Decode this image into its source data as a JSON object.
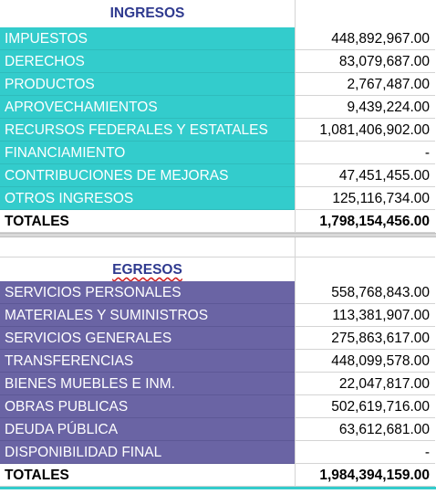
{
  "ingresos": {
    "title": "INGRESOS",
    "rows": [
      {
        "label": "IMPUESTOS",
        "value": "448,892,967.00"
      },
      {
        "label": "DERECHOS",
        "value": "83,079,687.00"
      },
      {
        "label": "PRODUCTOS",
        "value": "2,767,487.00"
      },
      {
        "label": "APROVECHAMIENTOS",
        "value": "9,439,224.00"
      },
      {
        "label": "RECURSOS FEDERALES Y ESTATALES",
        "value": "1,081,406,902.00"
      },
      {
        "label": "FINANCIAMIENTO",
        "value": "-"
      },
      {
        "label": "CONTRIBUCIONES DE MEJORAS",
        "value": "47,451,455.00"
      },
      {
        "label": "OTROS INGRESOS",
        "value": "125,116,734.00"
      }
    ],
    "total_label": "TOTALES",
    "total_value": "1,798,154,456.00"
  },
  "egresos": {
    "title": "EGRESOS",
    "rows": [
      {
        "label": "SERVICIOS PERSONALES",
        "value": "558,768,843.00"
      },
      {
        "label": "MATERIALES Y SUMINISTROS",
        "value": "113,381,907.00"
      },
      {
        "label": "SERVICIOS GENERALES",
        "value": "275,863,617.00"
      },
      {
        "label": "TRANSFERENCIAS",
        "value": "448,099,578.00"
      },
      {
        "label": "BIENES MUEBLES E INM.",
        "value": "22,047,817.00"
      },
      {
        "label": "OBRAS PUBLICAS",
        "value": "502,619,716.00"
      },
      {
        "label": "DEUDA PÚBLICA",
        "value": "63,612,681.00"
      },
      {
        "label": "DISPONIBILIDAD FINAL",
        "value": "-"
      }
    ],
    "total_label": "TOTALES",
    "total_value": "1,984,394,159.00"
  },
  "colors": {
    "ingresos_fill": "#33cccc",
    "egresos_fill": "#6a64a4",
    "header_text": "#2f3a8f"
  }
}
